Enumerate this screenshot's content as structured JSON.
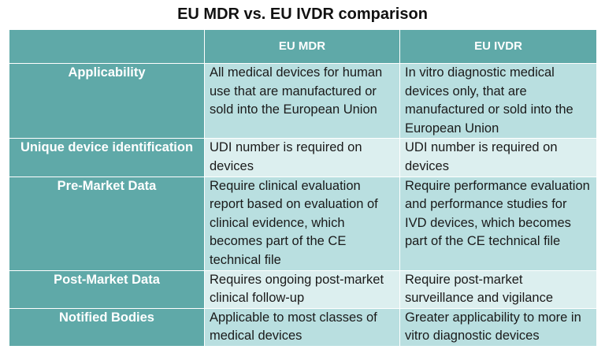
{
  "title": "EU MDR vs. EU IVDR comparison",
  "columns": [
    "",
    "EU MDR",
    "EU IVDR"
  ],
  "rows": [
    {
      "label": "Applicability",
      "mdr": "All medical devices for human use that are manufactured or sold into the European Union",
      "ivdr": "In vitro diagnostic medical devices only, that are manufactured or sold into the European Union"
    },
    {
      "label": "Unique device identification",
      "mdr": "UDI number is required on devices",
      "ivdr": "UDI number is required on devices"
    },
    {
      "label": "Pre-Market Data",
      "mdr": "Require clinical evaluation report based on evaluation of clinical evidence, which becomes part of the CE technical file",
      "ivdr": "Require performance evaluation and performance studies for IVD devices, which becomes part of the CE technical file"
    },
    {
      "label": "Post-Market Data",
      "mdr": "Requires ongoing post-market clinical follow-up",
      "ivdr": "Require post-market surveillance and vigilance"
    },
    {
      "label": "Notified Bodies",
      "mdr": "Applicable to most classes of medical devices",
      "ivdr": "Greater applicability to more in vitro diagnostic devices"
    }
  ],
  "colors": {
    "header": "#5fa9a8",
    "row_dark": "#b9dfe0",
    "row_light": "#dcefef"
  }
}
